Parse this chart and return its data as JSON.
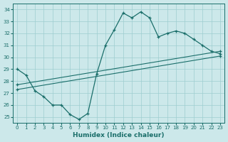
{
  "xlabel": "Humidex (Indice chaleur)",
  "bg_color": "#cce8ea",
  "grid_color": "#9ecdd0",
  "line_color": "#1a6e6a",
  "xlim": [
    -0.5,
    23.5
  ],
  "ylim": [
    24.5,
    34.5
  ],
  "xticks": [
    0,
    1,
    2,
    3,
    4,
    5,
    6,
    7,
    8,
    9,
    10,
    11,
    12,
    13,
    14,
    15,
    16,
    17,
    18,
    19,
    20,
    21,
    22,
    23
  ],
  "yticks": [
    25,
    26,
    27,
    28,
    29,
    30,
    31,
    32,
    33,
    34
  ],
  "curve_x": [
    0,
    1,
    2,
    3,
    4,
    5,
    6,
    7,
    8,
    9,
    10,
    11,
    12,
    13,
    14,
    15,
    16,
    17,
    18,
    19,
    20,
    21,
    22,
    23
  ],
  "curve_y": [
    29.0,
    28.5,
    27.2,
    26.7,
    26.0,
    26.0,
    25.2,
    24.8,
    25.3,
    28.6,
    31.0,
    32.3,
    33.7,
    33.3,
    33.8,
    33.3,
    31.7,
    32.0,
    32.2,
    32.0,
    31.5,
    31.0,
    30.5,
    30.3
  ],
  "trend1_x": [
    0,
    23
  ],
  "trend1_y": [
    27.3,
    30.1
  ],
  "trend2_x": [
    0,
    23
  ],
  "trend2_y": [
    27.7,
    30.5
  ]
}
